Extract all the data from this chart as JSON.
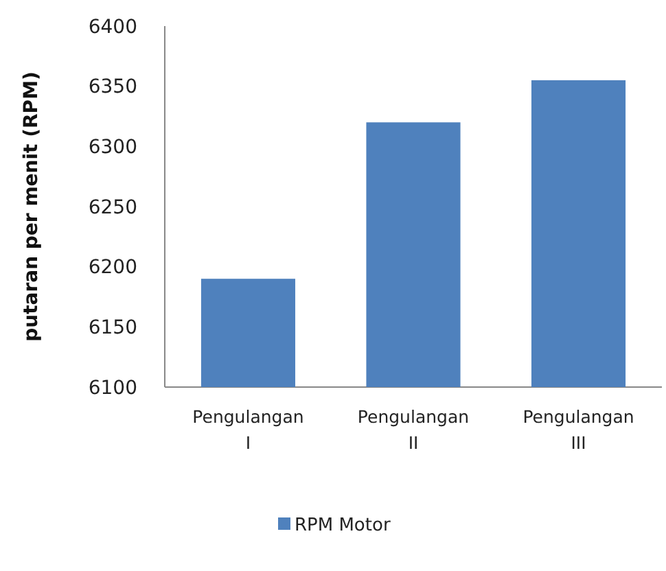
{
  "chart_data": {
    "type": "bar",
    "ylabel": "putaran per menit (RPM)",
    "categories": [
      "Pengulangan I",
      "Pengulangan II",
      "Pengulangan III"
    ],
    "series": [
      {
        "name": "RPM Motor",
        "color": "#4f81bd",
        "values": [
          6190,
          6320,
          6355
        ]
      }
    ],
    "ylim": [
      6100,
      6400
    ],
    "yticks": [
      6100,
      6150,
      6200,
      6250,
      6300,
      6350,
      6400
    ],
    "grid": false,
    "legend": "bottom"
  }
}
